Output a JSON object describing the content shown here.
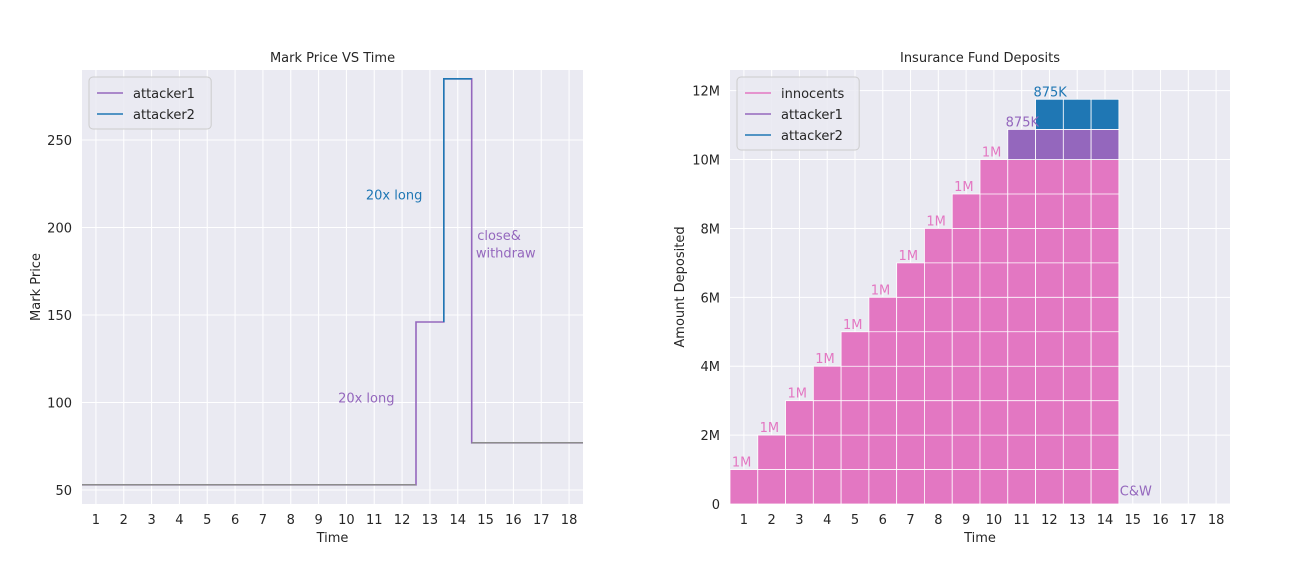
{
  "chart_data": [
    {
      "type": "line",
      "title": "Mark Price VS Time",
      "xlabel": "Time",
      "ylabel": "Mark Price",
      "xlim": [
        0.5,
        18.5
      ],
      "ylim": [
        42,
        290
      ],
      "x_ticks": [
        1,
        2,
        3,
        4,
        5,
        6,
        7,
        8,
        9,
        10,
        11,
        12,
        13,
        14,
        15,
        16,
        17,
        18
      ],
      "y_ticks": [
        50,
        100,
        150,
        200,
        250
      ],
      "grid": true,
      "legend_position": "top-left",
      "series": [
        {
          "name": "attacker1",
          "color": "#9467bd",
          "style": "step",
          "x": [
            0.5,
            12.5,
            12.5,
            13.5,
            13.5,
            14.5,
            14.5,
            18.5
          ],
          "y": [
            53,
            53,
            146,
            146,
            285,
            285,
            77,
            77
          ]
        },
        {
          "name": "attacker2",
          "color": "#1f77b4",
          "style": "step",
          "x": [
            13.5,
            13.5,
            14.5
          ],
          "y": [
            146,
            285,
            285
          ]
        }
      ],
      "annotations": [
        {
          "text": "20x long",
          "x": 10.7,
          "y": 216,
          "color": "#1f77b4"
        },
        {
          "text": "20x long",
          "x": 9.7,
          "y": 100,
          "color": "#9467bd"
        },
        {
          "text": "close&",
          "x": 14.7,
          "y": 193,
          "color": "#9467bd"
        },
        {
          "text": "withdraw",
          "x": 14.65,
          "y": 183,
          "color": "#9467bd"
        }
      ]
    },
    {
      "type": "bar",
      "stacked": true,
      "title": "Insurance Fund Deposits",
      "xlabel": "Time",
      "ylabel": "Amount Deposited",
      "xlim": [
        0.5,
        18.5
      ],
      "ylim": [
        0,
        12.6
      ],
      "y_unit": "millions",
      "categories": [
        1,
        2,
        3,
        4,
        5,
        6,
        7,
        8,
        9,
        10,
        11,
        12,
        13,
        14,
        15,
        16,
        17,
        18
      ],
      "y_ticks": [
        0,
        2,
        4,
        6,
        8,
        10,
        12
      ],
      "y_tick_labels": [
        "0",
        "2M",
        "4M",
        "6M",
        "8M",
        "10M",
        "12M"
      ],
      "grid": true,
      "legend_position": "top-left",
      "series": [
        {
          "name": "innocents",
          "color": "#e377c2",
          "values": [
            1,
            2,
            3,
            4,
            5,
            6,
            7,
            8,
            9,
            10,
            10,
            10,
            10,
            10,
            0,
            0,
            0,
            0
          ]
        },
        {
          "name": "attacker1",
          "color": "#9467bd",
          "values": [
            0,
            0,
            0,
            0,
            0,
            0,
            0,
            0,
            0,
            0,
            0.875,
            0.875,
            0.875,
            0.875,
            0,
            0,
            0,
            0
          ]
        },
        {
          "name": "attacker2",
          "color": "#1f77b4",
          "values": [
            0,
            0,
            0,
            0,
            0,
            0,
            0,
            0,
            0,
            0,
            0,
            0.875,
            0.875,
            0.875,
            0,
            0,
            0,
            0
          ]
        }
      ],
      "annotations": [
        {
          "text": "1M",
          "x": 1,
          "y": 1.0,
          "color": "#e377c2"
        },
        {
          "text": "1M",
          "x": 2,
          "y": 2.0,
          "color": "#e377c2"
        },
        {
          "text": "1M",
          "x": 3,
          "y": 3.0,
          "color": "#e377c2"
        },
        {
          "text": "1M",
          "x": 4,
          "y": 4.0,
          "color": "#e377c2"
        },
        {
          "text": "1M",
          "x": 5,
          "y": 5.0,
          "color": "#e377c2"
        },
        {
          "text": "1M",
          "x": 6,
          "y": 6.0,
          "color": "#e377c2"
        },
        {
          "text": "1M",
          "x": 7,
          "y": 7.0,
          "color": "#e377c2"
        },
        {
          "text": "1M",
          "x": 8,
          "y": 8.0,
          "color": "#e377c2"
        },
        {
          "text": "1M",
          "x": 9,
          "y": 9.0,
          "color": "#e377c2"
        },
        {
          "text": "1M",
          "x": 10,
          "y": 10.0,
          "color": "#e377c2"
        },
        {
          "text": "875K",
          "x": 11,
          "y": 10.875,
          "color": "#9467bd"
        },
        {
          "text": "875K",
          "x": 12,
          "y": 11.75,
          "color": "#1f77b4"
        },
        {
          "text": "C&W",
          "x": 15,
          "y": 0.3,
          "color": "#9467bd"
        }
      ]
    }
  ]
}
